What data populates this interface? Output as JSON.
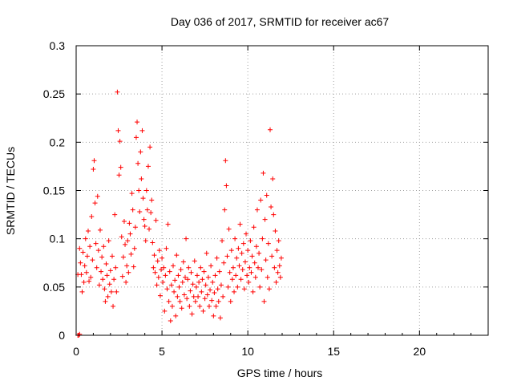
{
  "chart_data": {
    "type": "scatter",
    "title": "Day 036 of 2017, SRMTID for receiver ac67",
    "xlabel": "GPS time / hours",
    "ylabel": "SRMTID / TECUs",
    "xlim": [
      0,
      24
    ],
    "ylim": [
      0,
      0.3
    ],
    "xticks": [
      0,
      5,
      10,
      15,
      20
    ],
    "xtick_labels": [
      "0",
      "5",
      "10",
      "15",
      "20"
    ],
    "yticks": [
      0,
      0.05,
      0.1,
      0.15,
      0.2,
      0.25,
      0.3
    ],
    "ytick_labels": [
      "0",
      "0.05",
      "0.1",
      "0.15",
      "0.2",
      "0.25",
      "0.3"
    ],
    "grid": true,
    "marker": "+",
    "marker_color": "#ff0000",
    "series": [
      {
        "name": "SRMTID",
        "points": [
          [
            0.1,
            0.0
          ],
          [
            0.15,
            0.0
          ],
          [
            0.2,
            0.001
          ],
          [
            0.1,
            0.063
          ],
          [
            0.2,
            0.09
          ],
          [
            0.25,
            0.075
          ],
          [
            0.3,
            0.063
          ],
          [
            0.35,
            0.045
          ],
          [
            0.4,
            0.086
          ],
          [
            0.45,
            0.055
          ],
          [
            0.5,
            0.072
          ],
          [
            0.55,
            0.1
          ],
          [
            0.6,
            0.065
          ],
          [
            0.65,
            0.082
          ],
          [
            0.7,
            0.108
          ],
          [
            0.75,
            0.056
          ],
          [
            0.8,
            0.092
          ],
          [
            0.85,
            0.06
          ],
          [
            0.9,
            0.123
          ],
          [
            0.95,
            0.078
          ],
          [
            1.0,
            0.172
          ],
          [
            1.05,
            0.181
          ],
          [
            1.1,
            0.137
          ],
          [
            1.15,
            0.095
          ],
          [
            1.2,
            0.07
          ],
          [
            1.25,
            0.144
          ],
          [
            1.3,
            0.088
          ],
          [
            1.35,
            0.052
          ],
          [
            1.4,
            0.109
          ],
          [
            1.45,
            0.066
          ],
          [
            1.5,
            0.081
          ],
          [
            1.55,
            0.058
          ],
          [
            1.6,
            0.092
          ],
          [
            1.65,
            0.048
          ],
          [
            1.7,
            0.035
          ],
          [
            1.75,
            0.074
          ],
          [
            1.8,
            0.062
          ],
          [
            1.85,
            0.04
          ],
          [
            1.9,
            0.098
          ],
          [
            1.95,
            0.053
          ],
          [
            2.0,
            0.067
          ],
          [
            2.05,
            0.045
          ],
          [
            2.1,
            0.082
          ],
          [
            2.15,
            0.03
          ],
          [
            2.2,
            0.058
          ],
          [
            2.25,
            0.125
          ],
          [
            2.3,
            0.07
          ],
          [
            2.35,
            0.045
          ],
          [
            2.4,
            0.252
          ],
          [
            2.45,
            0.212
          ],
          [
            2.5,
            0.166
          ],
          [
            2.55,
            0.201
          ],
          [
            2.6,
            0.174
          ],
          [
            2.65,
            0.102
          ],
          [
            2.7,
            0.061
          ],
          [
            2.75,
            0.081
          ],
          [
            2.8,
            0.118
          ],
          [
            2.85,
            0.094
          ],
          [
            2.9,
            0.055
          ],
          [
            2.95,
            0.072
          ],
          [
            3.0,
            0.098
          ],
          [
            3.05,
            0.065
          ],
          [
            3.1,
            0.116
          ],
          [
            3.15,
            0.105
          ],
          [
            3.2,
            0.084
          ],
          [
            3.25,
            0.147
          ],
          [
            3.3,
            0.13
          ],
          [
            3.35,
            0.071
          ],
          [
            3.4,
            0.09
          ],
          [
            3.45,
            0.112
          ],
          [
            3.5,
            0.205
          ],
          [
            3.55,
            0.221
          ],
          [
            3.6,
            0.178
          ],
          [
            3.65,
            0.15
          ],
          [
            3.7,
            0.128
          ],
          [
            3.75,
            0.19
          ],
          [
            3.8,
            0.162
          ],
          [
            3.85,
            0.212
          ],
          [
            3.9,
            0.142
          ],
          [
            3.95,
            0.12
          ],
          [
            4.0,
            0.113
          ],
          [
            4.05,
            0.098
          ],
          [
            4.1,
            0.15
          ],
          [
            4.15,
            0.13
          ],
          [
            4.2,
            0.175
          ],
          [
            4.25,
            0.11
          ],
          [
            4.3,
            0.195
          ],
          [
            4.35,
            0.127
          ],
          [
            4.4,
            0.14
          ],
          [
            4.45,
            0.096
          ],
          [
            4.5,
            0.07
          ],
          [
            4.55,
            0.083
          ],
          [
            4.6,
            0.065
          ],
          [
            4.65,
            0.119
          ],
          [
            4.7,
            0.052
          ],
          [
            4.75,
            0.077
          ],
          [
            4.8,
            0.06
          ],
          [
            4.85,
            0.088
          ],
          [
            4.9,
            0.041
          ],
          [
            4.95,
            0.068
          ],
          [
            5.0,
            0.08
          ],
          [
            5.05,
            0.055
          ],
          [
            5.1,
            0.07
          ],
          [
            5.15,
            0.025
          ],
          [
            5.2,
            0.062
          ],
          [
            5.25,
            0.09
          ],
          [
            5.3,
            0.048
          ],
          [
            5.35,
            0.115
          ],
          [
            5.4,
            0.035
          ],
          [
            5.45,
            0.066
          ],
          [
            5.5,
            0.015
          ],
          [
            5.55,
            0.052
          ],
          [
            5.6,
            0.03
          ],
          [
            5.65,
            0.072
          ],
          [
            5.7,
            0.045
          ],
          [
            5.75,
            0.057
          ],
          [
            5.8,
            0.02
          ],
          [
            5.85,
            0.083
          ],
          [
            5.9,
            0.04
          ],
          [
            5.95,
            0.062
          ],
          [
            6.0,
            0.05
          ],
          [
            6.05,
            0.035
          ],
          [
            6.1,
            0.068
          ],
          [
            6.15,
            0.028
          ],
          [
            6.2,
            0.055
          ],
          [
            6.25,
            0.076
          ],
          [
            6.3,
            0.042
          ],
          [
            6.35,
            0.06
          ],
          [
            6.4,
            0.1
          ],
          [
            6.45,
            0.038
          ],
          [
            6.5,
            0.058
          ],
          [
            6.55,
            0.07
          ],
          [
            6.6,
            0.03
          ],
          [
            6.65,
            0.046
          ],
          [
            6.7,
            0.065
          ],
          [
            6.75,
            0.022
          ],
          [
            6.8,
            0.053
          ],
          [
            6.85,
            0.04
          ],
          [
            6.9,
            0.077
          ],
          [
            6.95,
            0.035
          ],
          [
            7.0,
            0.05
          ],
          [
            7.05,
            0.062
          ],
          [
            7.1,
            0.04
          ],
          [
            7.15,
            0.055
          ],
          [
            7.2,
            0.03
          ],
          [
            7.25,
            0.07
          ],
          [
            7.3,
            0.045
          ],
          [
            7.35,
            0.058
          ],
          [
            7.4,
            0.025
          ],
          [
            7.45,
            0.066
          ],
          [
            7.5,
            0.038
          ],
          [
            7.55,
            0.052
          ],
          [
            7.6,
            0.085
          ],
          [
            7.65,
            0.042
          ],
          [
            7.7,
            0.06
          ],
          [
            7.75,
            0.03
          ],
          [
            7.8,
            0.047
          ],
          [
            7.85,
            0.072
          ],
          [
            7.9,
            0.036
          ],
          [
            7.95,
            0.055
          ],
          [
            8.0,
            0.02
          ],
          [
            8.05,
            0.044
          ],
          [
            8.1,
            0.062
          ],
          [
            8.15,
            0.03
          ],
          [
            8.2,
            0.08
          ],
          [
            8.25,
            0.048
          ],
          [
            8.3,
            0.035
          ],
          [
            8.35,
            0.066
          ],
          [
            8.4,
            0.018
          ],
          [
            8.45,
            0.052
          ],
          [
            8.5,
            0.098
          ],
          [
            8.55,
            0.04
          ],
          [
            8.6,
            0.075
          ],
          [
            8.65,
            0.13
          ],
          [
            8.7,
            0.181
          ],
          [
            8.75,
            0.155
          ],
          [
            8.8,
            0.082
          ],
          [
            8.85,
            0.05
          ],
          [
            8.9,
            0.11
          ],
          [
            8.95,
            0.065
          ],
          [
            9.0,
            0.035
          ],
          [
            9.05,
            0.088
          ],
          [
            9.1,
            0.058
          ],
          [
            9.15,
            0.07
          ],
          [
            9.2,
            0.045
          ],
          [
            9.25,
            0.1
          ],
          [
            9.3,
            0.062
          ],
          [
            9.35,
            0.08
          ],
          [
            9.4,
            0.05
          ],
          [
            9.45,
            0.09
          ],
          [
            9.5,
            0.072
          ],
          [
            9.55,
            0.115
          ],
          [
            9.6,
            0.058
          ],
          [
            9.65,
            0.085
          ],
          [
            9.7,
            0.068
          ],
          [
            9.75,
            0.095
          ],
          [
            9.8,
            0.048
          ],
          [
            9.85,
            0.076
          ],
          [
            9.9,
            0.105
          ],
          [
            9.95,
            0.062
          ],
          [
            10.0,
            0.088
          ],
          [
            10.05,
            0.055
          ],
          [
            10.1,
            0.07
          ],
          [
            10.15,
            0.098
          ],
          [
            10.2,
            0.065
          ],
          [
            10.25,
            0.082
          ],
          [
            10.3,
            0.045
          ],
          [
            10.35,
            0.112
          ],
          [
            10.4,
            0.075
          ],
          [
            10.45,
            0.06
          ],
          [
            10.5,
            0.092
          ],
          [
            10.55,
            0.13
          ],
          [
            10.6,
            0.07
          ],
          [
            10.65,
            0.085
          ],
          [
            10.7,
            0.05
          ],
          [
            10.75,
            0.14
          ],
          [
            10.8,
            0.068
          ],
          [
            10.85,
            0.1
          ],
          [
            10.9,
            0.168
          ],
          [
            10.95,
            0.035
          ],
          [
            11.0,
            0.12
          ],
          [
            11.05,
            0.078
          ],
          [
            11.1,
            0.145
          ],
          [
            11.15,
            0.06
          ],
          [
            11.2,
            0.095
          ],
          [
            11.25,
            0.048
          ],
          [
            11.3,
            0.213
          ],
          [
            11.35,
            0.133
          ],
          [
            11.4,
            0.082
          ],
          [
            11.45,
            0.162
          ],
          [
            11.5,
            0.125
          ],
          [
            11.55,
            0.07
          ],
          [
            11.6,
            0.108
          ],
          [
            11.65,
            0.055
          ],
          [
            11.7,
            0.088
          ],
          [
            11.75,
            0.065
          ],
          [
            11.8,
            0.098
          ],
          [
            11.85,
            0.072
          ],
          [
            11.9,
            0.06
          ],
          [
            11.95,
            0.08
          ]
        ]
      }
    ]
  }
}
